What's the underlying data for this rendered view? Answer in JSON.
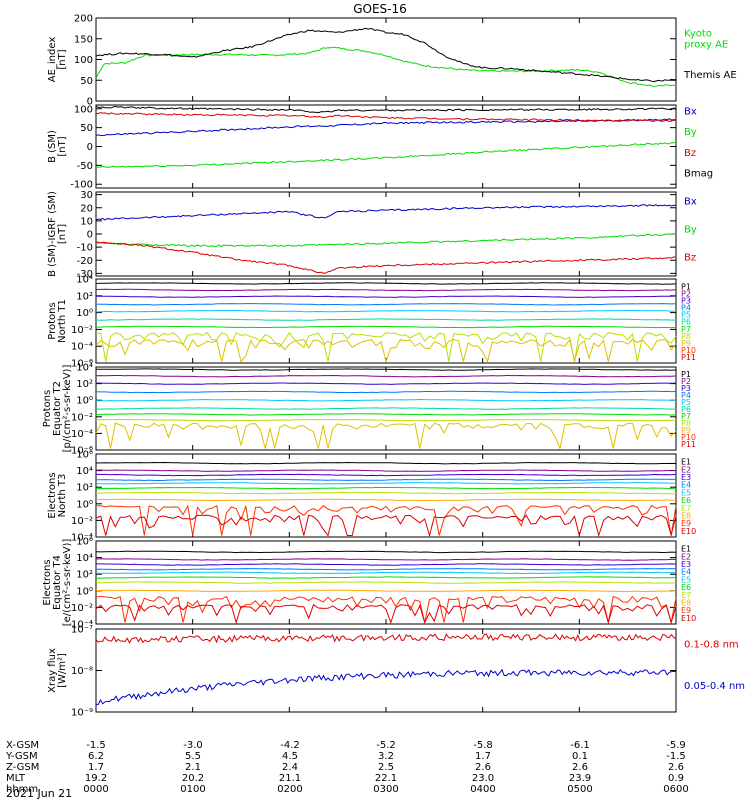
{
  "title": "GOES-16",
  "date_label": "2021 Jun 21",
  "footer": {
    "row_labels": [
      "X-GSM",
      "Y-GSM",
      "Z-GSM",
      "MLT",
      "hhmm"
    ],
    "columns": [
      [
        "-1.5",
        "6.2",
        "1.7",
        "19.2",
        "0000"
      ],
      [
        "-3.0",
        "5.5",
        "2.1",
        "20.2",
        "0100"
      ],
      [
        "-4.2",
        "4.5",
        "2.4",
        "21.1",
        "0200"
      ],
      [
        "-5.2",
        "3.2",
        "2.5",
        "22.1",
        "0300"
      ],
      [
        "-5.8",
        "1.7",
        "2.6",
        "23.0",
        "0400"
      ],
      [
        "-6.1",
        "0.1",
        "2.6",
        "23.9",
        "0500"
      ],
      [
        "-5.9",
        "-1.5",
        "2.6",
        "0.9",
        "0600"
      ]
    ]
  },
  "colors": {
    "black": "#000000",
    "green": "#00dd00",
    "blue": "#0000cc",
    "red": "#dd0000"
  },
  "chart_data": [
    {
      "type": "line",
      "title": "GOES-16",
      "ylabel": [
        "AE_index",
        "[nT]"
      ],
      "ylim": [
        0,
        200
      ],
      "yticks": [
        0,
        50,
        100,
        150,
        200
      ],
      "ytick_labels": [
        "0",
        "50",
        "100",
        "150",
        "200"
      ],
      "x": [
        "0000",
        "0100",
        "0200",
        "0300",
        "0400",
        "0500",
        "0600"
      ],
      "series": [
        {
          "name": "Kyoto proxy AE",
          "color": "#00dd00",
          "label_lines": [
            "Kyoto",
            "proxy AE"
          ],
          "points": [
            [
              0,
              55
            ],
            [
              0.08,
              90
            ],
            [
              0.3,
              92
            ],
            [
              0.5,
              110
            ],
            [
              1,
              112
            ],
            [
              1.4,
              112
            ],
            [
              1.8,
              110
            ],
            [
              2.2,
              115
            ],
            [
              2.4,
              130
            ],
            [
              2.6,
              125
            ],
            [
              2.8,
              120
            ],
            [
              3.0,
              110
            ],
            [
              3.2,
              95
            ],
            [
              3.4,
              85
            ],
            [
              3.6,
              80
            ],
            [
              3.8,
              75
            ],
            [
              4.0,
              72
            ],
            [
              4.5,
              72
            ],
            [
              5.0,
              75
            ],
            [
              5.2,
              70
            ],
            [
              5.5,
              45
            ],
            [
              5.8,
              35
            ],
            [
              6,
              40
            ]
          ]
        },
        {
          "name": "Themis AE",
          "color": "#000000",
          "label_lines": [
            "Themis AE"
          ],
          "points": [
            [
              0,
              110
            ],
            [
              0.3,
              115
            ],
            [
              0.7,
              112
            ],
            [
              1.0,
              105
            ],
            [
              1.3,
              120
            ],
            [
              1.6,
              130
            ],
            [
              1.8,
              145
            ],
            [
              2.0,
              160
            ],
            [
              2.2,
              170
            ],
            [
              2.5,
              165
            ],
            [
              2.8,
              175
            ],
            [
              3.0,
              165
            ],
            [
              3.2,
              160
            ],
            [
              3.4,
              140
            ],
            [
              3.6,
              110
            ],
            [
              3.8,
              90
            ],
            [
              4.0,
              80
            ],
            [
              4.3,
              78
            ],
            [
              4.6,
              72
            ],
            [
              5.0,
              65
            ],
            [
              5.3,
              58
            ],
            [
              5.6,
              50
            ],
            [
              5.8,
              48
            ],
            [
              6,
              52
            ]
          ]
        }
      ]
    },
    {
      "type": "line",
      "ylabel": [
        "B (SM)",
        "[nT]"
      ],
      "ylim": [
        -110,
        110
      ],
      "yticks": [
        -100,
        -50,
        0,
        50,
        100
      ],
      "ytick_labels": [
        "-100",
        "-50",
        "0",
        "50",
        "100"
      ],
      "x": [
        "0000",
        "0100",
        "0200",
        "0300",
        "0400",
        "0500",
        "0600"
      ],
      "series": [
        {
          "name": "Bx",
          "color": "#0000cc",
          "points": [
            [
              0,
              30
            ],
            [
              1,
              40
            ],
            [
              2,
              52
            ],
            [
              2.4,
              55
            ],
            [
              3,
              62
            ],
            [
              4,
              65
            ],
            [
              5,
              67
            ],
            [
              6,
              72
            ]
          ]
        },
        {
          "name": "By",
          "color": "#00dd00",
          "points": [
            [
              0,
              -55
            ],
            [
              1,
              -50
            ],
            [
              2,
              -40
            ],
            [
              3,
              -30
            ],
            [
              4,
              -15
            ],
            [
              5,
              -2
            ],
            [
              6,
              10
            ]
          ]
        },
        {
          "name": "Bz",
          "color": "#dd0000",
          "points": [
            [
              0,
              88
            ],
            [
              1,
              84
            ],
            [
              2,
              82
            ],
            [
              2.35,
              78
            ],
            [
              2.5,
              82
            ],
            [
              3,
              76
            ],
            [
              4,
              72
            ],
            [
              5,
              70
            ],
            [
              6,
              68
            ]
          ]
        },
        {
          "name": "Bmag",
          "color": "#000000",
          "points": [
            [
              0,
              105
            ],
            [
              1,
              100
            ],
            [
              2,
              97
            ],
            [
              2.35,
              90
            ],
            [
              2.5,
              96
            ],
            [
              3,
              96
            ],
            [
              4,
              97
            ],
            [
              5,
              98
            ],
            [
              6,
              100
            ]
          ]
        }
      ]
    },
    {
      "type": "line",
      "ylabel": [
        "B (SM)-IGRF (SM)",
        "[nT]"
      ],
      "ylim": [
        -32,
        32
      ],
      "yticks": [
        -30,
        -20,
        -10,
        0,
        10,
        20,
        30
      ],
      "ytick_labels": [
        "-30",
        "-20",
        "-10",
        "0",
        "10",
        "20",
        "30"
      ],
      "x": [
        "0000",
        "0100",
        "0200",
        "0300",
        "0400",
        "0500",
        "0600"
      ],
      "series": [
        {
          "name": "Bx",
          "color": "#0000cc",
          "points": [
            [
              0,
              11
            ],
            [
              1,
              14
            ],
            [
              2,
              17
            ],
            [
              2.35,
              12
            ],
            [
              2.5,
              17
            ],
            [
              3,
              18
            ],
            [
              4,
              20
            ],
            [
              5,
              21
            ],
            [
              6,
              22
            ]
          ]
        },
        {
          "name": "By",
          "color": "#00dd00",
          "points": [
            [
              0,
              -7
            ],
            [
              1,
              -9
            ],
            [
              2,
              -9
            ],
            [
              2.5,
              -8
            ],
            [
              3,
              -7
            ],
            [
              4,
              -5
            ],
            [
              5,
              -3
            ],
            [
              6,
              0
            ]
          ]
        },
        {
          "name": "Bz",
          "color": "#dd0000",
          "points": [
            [
              0,
              -6
            ],
            [
              0.5,
              -9
            ],
            [
              1,
              -14
            ],
            [
              1.5,
              -20
            ],
            [
              2,
              -24
            ],
            [
              2.35,
              -30
            ],
            [
              2.5,
              -26
            ],
            [
              3,
              -24
            ],
            [
              4,
              -22
            ],
            [
              5,
              -20
            ],
            [
              6,
              -18
            ]
          ]
        }
      ]
    },
    {
      "type": "line",
      "log_scale": true,
      "ylabel": [
        "Protons",
        "North T1"
      ],
      "ylim": [
        1e-06,
        10000.0
      ],
      "yticks": [
        1e-06,
        0.0001,
        0.01,
        1,
        100.0,
        10000.0
      ],
      "ytick_labels": [
        "10⁻⁶",
        "10⁻⁴",
        "10⁻²",
        "10⁰",
        "10²",
        "10⁴"
      ],
      "x": [
        "0000",
        "0100",
        "0200",
        "0300",
        "0400",
        "0500",
        "0600"
      ],
      "series": [
        {
          "name": "P1",
          "color": "#000000",
          "level": 3000
        },
        {
          "name": "P2",
          "color": "#8a0090",
          "level": 500
        },
        {
          "name": "P3",
          "color": "#3a00d0",
          "level": 80
        },
        {
          "name": "P4",
          "color": "#0078ff",
          "level": 10
        },
        {
          "name": "P5",
          "color": "#00c8ff",
          "level": 1.5
        },
        {
          "name": "P6",
          "color": "#00d8a0",
          "level": 0.15
        },
        {
          "name": "P7",
          "color": "#00dd00",
          "level": 0.02
        },
        {
          "name": "P8",
          "color": "#b8e000",
          "level": 0.002
        },
        {
          "name": "P9",
          "color": "#e0c000",
          "level": 0.0003
        },
        {
          "name": "P10",
          "color": "#ff3000",
          "level": 0
        },
        {
          "name": "P11",
          "color": "#dd0000",
          "level": 0
        }
      ]
    },
    {
      "type": "line",
      "log_scale": true,
      "ylabel": [
        "Protons",
        "Equator T2",
        "[p/(cm²-s-sr-keV)]"
      ],
      "ylim": [
        1e-06,
        10000.0
      ],
      "yticks": [
        1e-06,
        0.0001,
        0.01,
        1,
        100.0,
        10000.0
      ],
      "ytick_labels": [
        "10⁻⁶",
        "10⁻⁴",
        "10⁻²",
        "10⁰",
        "10²",
        "10⁴"
      ],
      "x": [
        "0000",
        "0100",
        "0200",
        "0300",
        "0400",
        "0500",
        "0600"
      ],
      "series": [
        {
          "name": "P1",
          "color": "#000000",
          "level": 5000
        },
        {
          "name": "P2",
          "color": "#8a0090",
          "level": 800
        },
        {
          "name": "P3",
          "color": "#3a00d0",
          "level": 100
        },
        {
          "name": "P4",
          "color": "#0078ff",
          "level": 10
        },
        {
          "name": "P5",
          "color": "#00c8ff",
          "level": 1
        },
        {
          "name": "P6",
          "color": "#00d8a0",
          "level": 0.1
        },
        {
          "name": "P7",
          "color": "#00dd00",
          "level": 0.02
        },
        {
          "name": "P8",
          "color": "#b8e000",
          "level": 0.004
        },
        {
          "name": "P9",
          "color": "#e0c000",
          "level": 0.0008
        },
        {
          "name": "P10",
          "color": "#ff3000",
          "level": 0
        },
        {
          "name": "P11",
          "color": "#dd0000",
          "level": 0
        }
      ]
    },
    {
      "type": "line",
      "log_scale": true,
      "ylabel": [
        "Electrons",
        "North T3"
      ],
      "ylim": [
        0.0001,
        1000000.0
      ],
      "yticks": [
        0.0001,
        0.01,
        1,
        100.0,
        10000.0,
        1000000.0
      ],
      "ytick_labels": [
        "10⁻⁴",
        "10⁻²",
        "10⁰",
        "10²",
        "10⁴",
        "10⁶"
      ],
      "x": [
        "0000",
        "0100",
        "0200",
        "0300",
        "0400",
        "0500",
        "0600"
      ],
      "series": [
        {
          "name": "E1",
          "color": "#000000",
          "level": 80000
        },
        {
          "name": "E2",
          "color": "#8a0090",
          "level": 10000
        },
        {
          "name": "E3",
          "color": "#3a00d0",
          "level": 3000
        },
        {
          "name": "E4",
          "color": "#0078ff",
          "level": 800
        },
        {
          "name": "E5",
          "color": "#00c8ff",
          "level": 300
        },
        {
          "name": "E6",
          "color": "#00dd00",
          "level": 80
        },
        {
          "name": "E7",
          "color": "#b8e000",
          "level": 20
        },
        {
          "name": "E8",
          "color": "#ffaa00",
          "level": 3
        },
        {
          "name": "E9",
          "color": "#ff3000",
          "level": 0.3
        },
        {
          "name": "E10",
          "color": "#dd0000",
          "level": 0.02
        }
      ]
    },
    {
      "type": "line",
      "log_scale": true,
      "ylabel": [
        "Electrons",
        "Equator T4",
        "[e/(cm²-s-sr-keV)]"
      ],
      "ylim": [
        0.0001,
        1000000.0
      ],
      "yticks": [
        0.0001,
        0.01,
        1,
        100.0,
        10000.0,
        1000000.0
      ],
      "ytick_labels": [
        "10⁻⁴",
        "10⁻²",
        "10⁰",
        "10²",
        "10⁴",
        "10⁶"
      ],
      "x": [
        "0000",
        "0100",
        "0200",
        "0300",
        "0400",
        "0500",
        "0600"
      ],
      "series": [
        {
          "name": "E1",
          "color": "#000000",
          "level": 50000
        },
        {
          "name": "E2",
          "color": "#8a0090",
          "level": 6000
        },
        {
          "name": "E3",
          "color": "#3a00d0",
          "level": 1500
        },
        {
          "name": "E4",
          "color": "#0078ff",
          "level": 400
        },
        {
          "name": "E5",
          "color": "#00c8ff",
          "level": 150
        },
        {
          "name": "E6",
          "color": "#00dd00",
          "level": 40
        },
        {
          "name": "E7",
          "color": "#b8e000",
          "level": 10
        },
        {
          "name": "E8",
          "color": "#ffaa00",
          "level": 1
        },
        {
          "name": "E9",
          "color": "#ff3000",
          "level": 0.1
        },
        {
          "name": "E10",
          "color": "#dd0000",
          "level": 0.01
        }
      ]
    },
    {
      "type": "line",
      "log_scale": true,
      "ylabel": [
        "Xray flux",
        "[W/m²]"
      ],
      "ylim": [
        1e-09,
        1e-07
      ],
      "yticks": [
        1e-09,
        1e-08,
        1e-07
      ],
      "ytick_labels": [
        "10⁻⁹",
        "10⁻⁸",
        "10⁻⁷"
      ],
      "x": [
        "0000",
        "0100",
        "0200",
        "0300",
        "0400",
        "0500",
        "0600"
      ],
      "series": [
        {
          "name": "0.1-0.8 nm",
          "color": "#dd0000",
          "points": [
            [
              0,
              5.5e-08
            ],
            [
              1,
              5.8e-08
            ],
            [
              2,
              6e-08
            ],
            [
              3,
              6.2e-08
            ],
            [
              4,
              6.5e-08
            ],
            [
              5,
              6.3e-08
            ],
            [
              6,
              6.4e-08
            ]
          ]
        },
        {
          "name": "0.05-0.4 nm",
          "color": "#0000cc",
          "points": [
            [
              0,
              1.8e-09
            ],
            [
              0.3,
              2.2e-09
            ],
            [
              0.6,
              2.8e-09
            ],
            [
              1,
              3.6e-09
            ],
            [
              1.5,
              4.8e-09
            ],
            [
              2,
              6e-09
            ],
            [
              2.5,
              7e-09
            ],
            [
              3,
              7.8e-09
            ],
            [
              3.5,
              8.4e-09
            ],
            [
              4,
              8.8e-09
            ],
            [
              5,
              9e-09
            ],
            [
              6,
              9.2e-09
            ]
          ]
        }
      ]
    }
  ]
}
